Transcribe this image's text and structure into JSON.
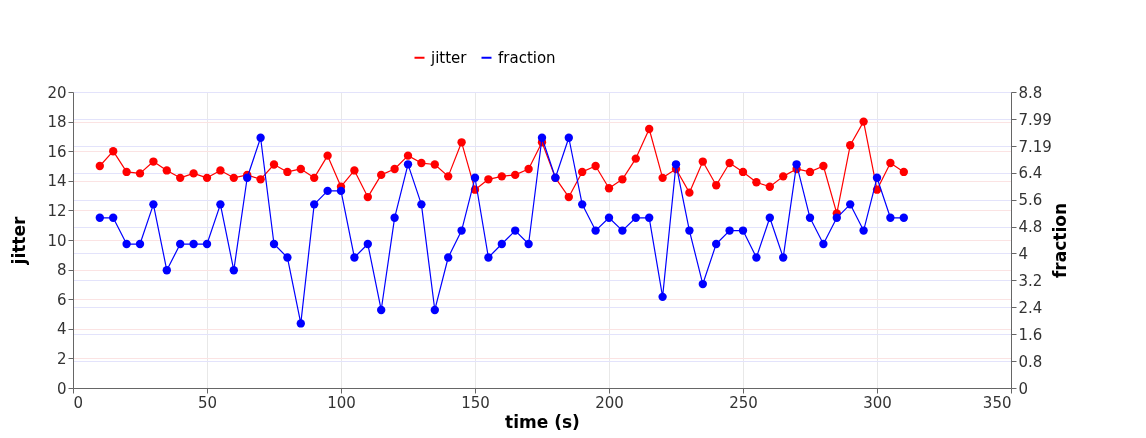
{
  "chart_data": {
    "type": "line",
    "xlabel": "time (s)",
    "ylabel": "jitter",
    "y2label": "fraction",
    "x": [
      10,
      15,
      20,
      25,
      30,
      35,
      40,
      45,
      50,
      55,
      60,
      65,
      70,
      75,
      80,
      85,
      90,
      95,
      100,
      105,
      110,
      115,
      120,
      125,
      130,
      135,
      140,
      145,
      150,
      155,
      160,
      165,
      170,
      175,
      180,
      185,
      190,
      195,
      200,
      205,
      210,
      215,
      220,
      225,
      230,
      235,
      240,
      245,
      250,
      255,
      260,
      265,
      270,
      275,
      280,
      285,
      290,
      295,
      300,
      305,
      310
    ],
    "series": [
      {
        "name": "jitter",
        "color": "#ff0000",
        "axis": "y",
        "values": [
          15.0,
          16.0,
          14.6,
          14.5,
          15.3,
          14.7,
          14.2,
          14.5,
          14.2,
          14.7,
          14.2,
          14.4,
          14.1,
          15.1,
          14.6,
          14.8,
          14.2,
          15.7,
          13.6,
          14.7,
          12.9,
          14.4,
          14.8,
          15.7,
          15.2,
          15.1,
          14.3,
          16.6,
          13.4,
          14.1,
          14.3,
          14.4,
          14.8,
          16.6,
          14.2,
          12.9,
          14.6,
          15.0,
          13.5,
          14.1,
          15.5,
          17.5,
          14.2,
          14.8,
          13.2,
          15.3,
          13.7,
          15.2,
          14.6,
          13.9,
          13.6,
          14.3,
          14.8,
          14.6,
          15.0,
          11.8,
          16.4,
          18.0,
          13.4,
          15.2,
          14.6
        ]
      },
      {
        "name": "fraction",
        "color": "#0000ff",
        "axis": "y2",
        "values": [
          5.06,
          5.06,
          4.28,
          4.28,
          5.46,
          3.5,
          4.28,
          4.28,
          4.28,
          5.46,
          3.5,
          6.25,
          7.44,
          4.28,
          3.88,
          1.92,
          5.46,
          5.86,
          5.86,
          3.88,
          4.28,
          2.32,
          5.06,
          6.65,
          5.46,
          2.32,
          3.88,
          4.68,
          6.25,
          3.88,
          4.28,
          4.68,
          4.28,
          7.44,
          6.25,
          7.44,
          5.46,
          4.68,
          5.06,
          4.68,
          5.06,
          5.06,
          2.71,
          6.65,
          4.68,
          3.09,
          4.28,
          4.68,
          4.68,
          3.88,
          5.06,
          3.88,
          6.65,
          5.06,
          4.28,
          5.06,
          5.46,
          4.68,
          6.25,
          5.06,
          5.06
        ]
      }
    ],
    "xlim": [
      0,
      350
    ],
    "xticks": [
      0,
      50,
      100,
      150,
      200,
      250,
      300,
      350
    ],
    "ylim": [
      0,
      20
    ],
    "yticks": [
      0,
      2,
      4,
      6,
      8,
      10,
      12,
      14,
      16,
      18,
      20
    ],
    "y2lim": [
      0,
      8.8
    ],
    "y2ticks": [
      0,
      0.8,
      1.6,
      2.4,
      3.2,
      4,
      4.8,
      5.6,
      6.4,
      7.19,
      7.99,
      8.8
    ],
    "grid": true,
    "legend": "top",
    "marker": "circle",
    "line_style": "solid"
  }
}
